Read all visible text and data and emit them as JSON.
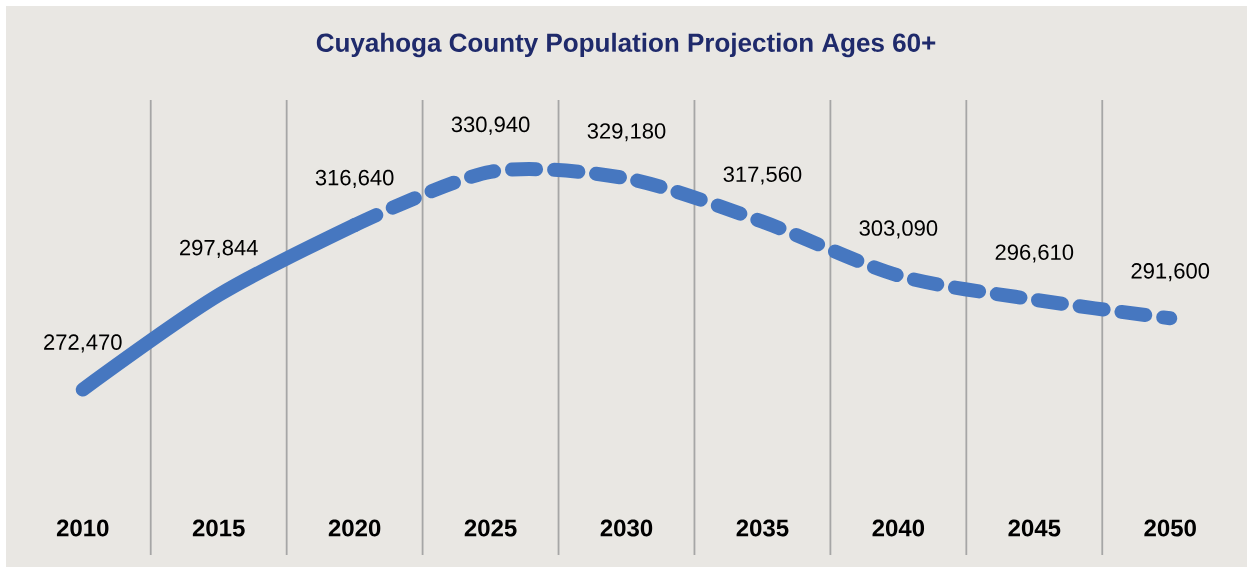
{
  "chart_data": {
    "type": "line",
    "title": "Cuyahoga County Population Projection Ages 60+",
    "categories": [
      "2010",
      "2015",
      "2020",
      "2025",
      "2030",
      "2035",
      "2040",
      "2045",
      "2050"
    ],
    "series": [
      {
        "color": "#4677c0",
        "line_style": "solid",
        "values": [
          272470,
          297844,
          316640,
          null,
          null,
          null,
          null,
          null,
          null
        ],
        "value_labels": [
          "272,470",
          "297,844",
          "316,640",
          null,
          null,
          null,
          null,
          null,
          null
        ]
      },
      {
        "color": "#4677c0",
        "line_style": "dashed",
        "values": [
          null,
          null,
          316640,
          330940,
          329180,
          317560,
          303090,
          296610,
          291600
        ],
        "value_labels": [
          null,
          null,
          null,
          "330,940",
          "329,180",
          "317,560",
          "303,090",
          "296,610",
          "291,600"
        ]
      }
    ],
    "grid": "x",
    "marker": "none"
  }
}
